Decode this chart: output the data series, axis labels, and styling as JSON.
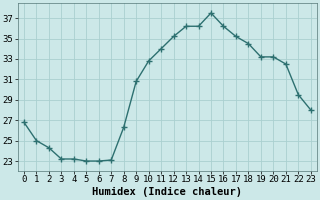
{
  "x": [
    0,
    1,
    2,
    3,
    4,
    5,
    6,
    7,
    8,
    9,
    10,
    11,
    12,
    13,
    14,
    15,
    16,
    17,
    18,
    19,
    20,
    21,
    22,
    23
  ],
  "y": [
    26.8,
    25.0,
    24.3,
    23.2,
    23.2,
    23.0,
    23.0,
    23.1,
    26.3,
    30.8,
    32.8,
    34.0,
    35.2,
    36.2,
    36.2,
    37.5,
    36.2,
    35.2,
    34.5,
    33.2,
    33.2,
    32.5,
    29.5,
    28.0
  ],
  "line_color": "#2d7070",
  "marker": "+",
  "marker_size": 4,
  "marker_lw": 1.0,
  "line_width": 1.0,
  "bg_color": "#cce8e8",
  "grid_color": "#aad0d0",
  "xlabel": "Humidex (Indice chaleur)",
  "xlim": [
    -0.5,
    23.5
  ],
  "ylim": [
    22.0,
    38.5
  ],
  "yticks": [
    23,
    25,
    27,
    29,
    31,
    33,
    35,
    37
  ],
  "xtick_labels": [
    "0",
    "1",
    "2",
    "3",
    "4",
    "5",
    "6",
    "7",
    "8",
    "9",
    "10",
    "11",
    "12",
    "13",
    "14",
    "15",
    "16",
    "17",
    "18",
    "19",
    "20",
    "21",
    "22",
    "23"
  ],
  "tick_fontsize": 6.5,
  "xlabel_fontsize": 7.5
}
